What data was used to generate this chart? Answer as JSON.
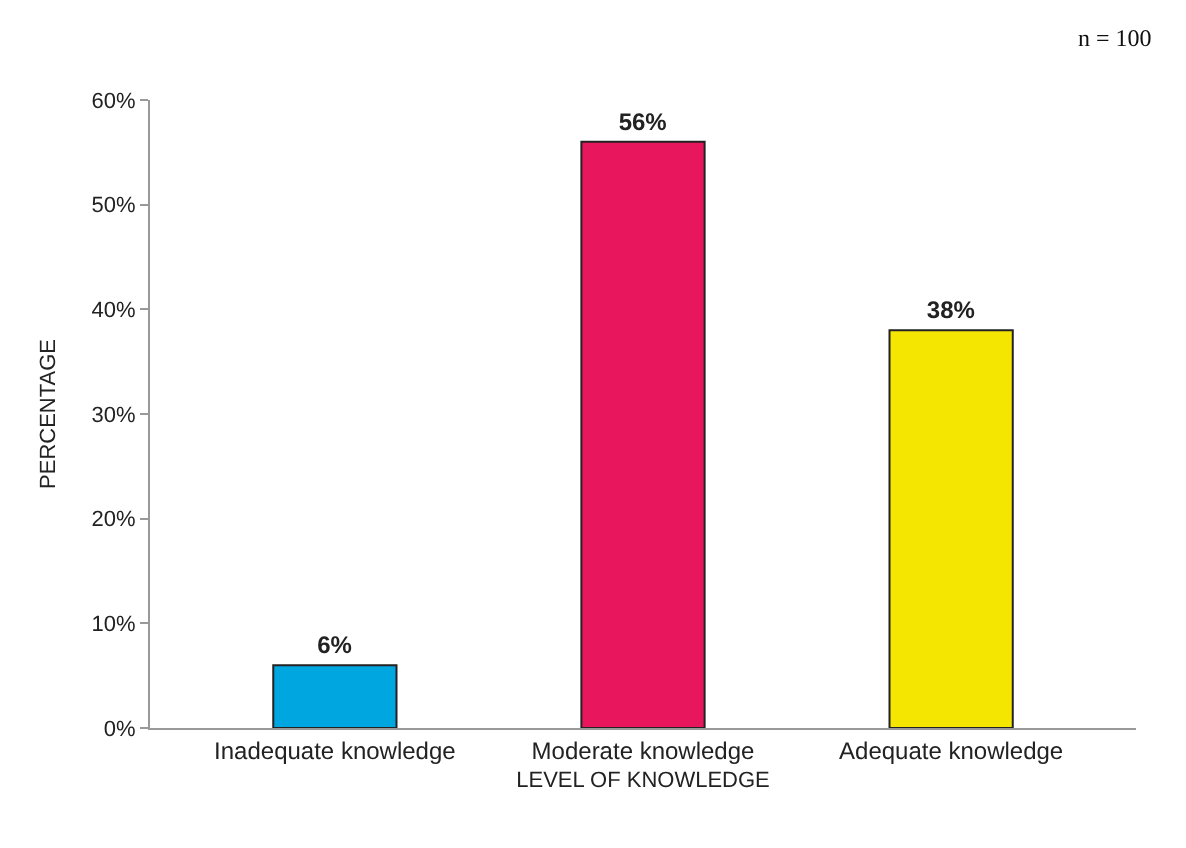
{
  "chart_data": {
    "type": "bar",
    "xlabel": "LEVEL OF KNOWLEDGE",
    "ylabel": "PERCENTAGE",
    "categories": [
      "Inadequate knowledge",
      "Moderate knowledge",
      "Adequate knowledge"
    ],
    "values": [
      6,
      56,
      38
    ],
    "colors": [
      "#00a6e0",
      "#e8175d",
      "#f4e600"
    ],
    "value_labels": [
      "6%",
      "56%",
      "38%"
    ],
    "ylim": [
      0,
      60
    ],
    "yticks": [
      {
        "value": 0,
        "label": "0%"
      },
      {
        "value": 10,
        "label": "10%"
      },
      {
        "value": 20,
        "label": "20%"
      },
      {
        "value": 30,
        "label": "30%"
      },
      {
        "value": 40,
        "label": "40%"
      },
      {
        "value": 50,
        "label": "50%"
      },
      {
        "value": 60,
        "label": "60%"
      }
    ],
    "annotations": [
      "n = 100"
    ]
  }
}
